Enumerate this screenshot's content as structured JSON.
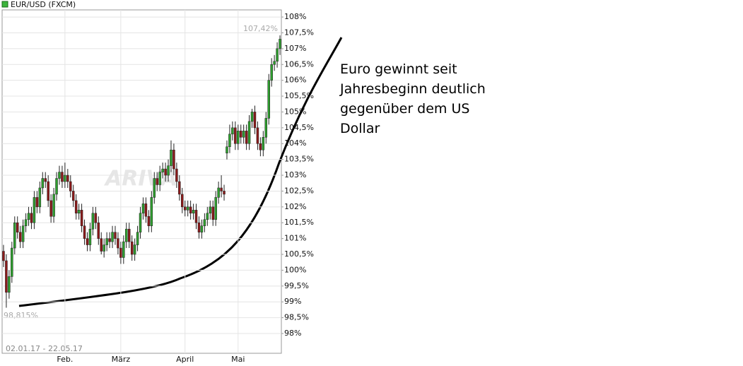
{
  "chart_data": {
    "type": "candlestick",
    "title": "EUR/USD (FXCM)",
    "annotations": {
      "max_label": "107,42%",
      "min_label": "98,815%",
      "range": "02.01.17 - 22.05.17",
      "watermark": "ARIVA",
      "comment": "Euro gewinnt seit Jahresbeginn deutlich gegenüber dem US Dollar"
    },
    "categories": [
      null,
      null,
      null,
      null,
      null,
      null,
      null,
      null,
      null,
      null,
      null,
      null,
      null,
      null,
      null,
      null,
      null,
      null,
      null,
      null,
      null,
      null,
      "Feb.",
      null,
      null,
      null,
      null,
      null,
      null,
      null,
      null,
      null,
      null,
      null,
      null,
      null,
      null,
      null,
      null,
      null,
      null,
      null,
      "März",
      null,
      null,
      null,
      null,
      null,
      null,
      null,
      null,
      null,
      null,
      null,
      null,
      null,
      null,
      null,
      null,
      null,
      null,
      null,
      null,
      null,
      null,
      "April",
      null,
      null,
      null,
      null,
      null,
      null,
      null,
      null,
      null,
      null,
      null,
      null,
      null,
      null,
      null,
      null,
      null,
      null,
      "Mai",
      null,
      null,
      null,
      null,
      null,
      null,
      null,
      null,
      null,
      null,
      null,
      null,
      null,
      null,
      null
    ],
    "series": [
      {
        "name": "EUR/USD (FXCM)",
        "up_color": "#2e9e2e",
        "down_color": "#8b1a1a",
        "open": [
          100.6,
          100.3,
          99.3,
          99.8,
          100.7,
          101.5,
          101.2,
          100.9,
          101.4,
          101.6,
          101.8,
          101.5,
          102.3,
          102.0,
          102.6,
          102.9,
          102.8,
          102.2,
          101.7,
          102.4,
          102.9,
          103.1,
          102.8,
          103.0,
          102.8,
          102.5,
          102.2,
          101.8,
          101.9,
          101.4,
          101.0,
          100.8,
          101.3,
          101.8,
          101.5,
          101.0,
          100.6,
          100.8,
          101.0,
          100.9,
          101.2,
          101.0,
          100.7,
          100.4,
          100.9,
          101.3,
          100.9,
          100.5,
          100.8,
          101.2,
          101.8,
          102.1,
          101.7,
          101.4,
          102.3,
          102.9,
          102.7,
          103.1,
          103.2,
          103.0,
          103.3,
          103.8,
          103.2,
          102.8,
          102.4,
          102.0,
          101.9,
          102.0,
          101.8,
          101.9,
          101.5,
          101.2,
          101.4,
          101.6,
          101.8,
          102.0,
          101.6,
          102.3,
          102.6,
          102.5,
          103.7,
          103.9,
          104.3,
          104.5,
          104.0,
          104.4,
          104.2,
          104.4,
          104.0,
          104.7,
          105.0,
          104.5,
          104.0,
          103.8,
          104.2,
          104.8,
          106.0,
          106.5,
          106.6,
          107.0
        ],
        "high": [
          100.8,
          100.5,
          100.0,
          100.9,
          101.7,
          101.7,
          101.4,
          101.6,
          101.8,
          102.0,
          102.0,
          102.5,
          102.5,
          102.8,
          103.1,
          103.1,
          103.0,
          102.4,
          102.6,
          103.1,
          103.3,
          103.3,
          103.4,
          103.2,
          103.0,
          102.7,
          102.4,
          102.1,
          102.1,
          101.6,
          101.2,
          101.5,
          102.0,
          102.0,
          101.7,
          101.2,
          101.0,
          101.2,
          101.2,
          101.4,
          101.4,
          101.2,
          100.9,
          101.1,
          101.5,
          101.5,
          101.1,
          101.0,
          101.4,
          102.0,
          102.3,
          102.3,
          101.9,
          102.5,
          103.1,
          103.1,
          103.3,
          103.4,
          103.4,
          103.5,
          104.1,
          104.0,
          103.4,
          103.0,
          102.6,
          102.2,
          102.2,
          102.2,
          102.1,
          102.1,
          101.7,
          101.6,
          101.8,
          102.0,
          102.2,
          102.2,
          102.5,
          102.8,
          103.0,
          102.7,
          104.1,
          104.6,
          104.7,
          104.7,
          104.6,
          104.6,
          104.6,
          104.6,
          104.9,
          105.1,
          105.2,
          104.7,
          104.2,
          104.4,
          105.0,
          106.2,
          106.7,
          106.8,
          107.2,
          107.42
        ],
        "low": [
          100.1,
          98.815,
          99.1,
          99.6,
          100.5,
          101.0,
          100.7,
          100.7,
          101.2,
          101.4,
          101.3,
          101.3,
          101.8,
          101.8,
          102.4,
          102.6,
          102.0,
          101.5,
          101.5,
          102.2,
          102.7,
          102.6,
          102.6,
          102.6,
          102.3,
          102.0,
          101.6,
          101.6,
          101.2,
          100.8,
          100.6,
          100.6,
          101.1,
          101.3,
          100.8,
          100.5,
          100.4,
          100.6,
          100.7,
          100.7,
          100.8,
          100.5,
          100.2,
          100.2,
          100.7,
          100.7,
          100.3,
          100.3,
          100.6,
          101.0,
          101.6,
          101.5,
          101.2,
          101.2,
          102.1,
          102.5,
          102.5,
          102.9,
          102.8,
          102.8,
          103.1,
          103.0,
          102.6,
          102.2,
          101.8,
          101.7,
          101.7,
          101.6,
          101.6,
          101.3,
          101.0,
          101.0,
          101.2,
          101.4,
          101.6,
          101.4,
          101.4,
          102.1,
          102.3,
          102.2,
          103.5,
          103.7,
          104.1,
          103.8,
          103.8,
          104.0,
          104.0,
          103.8,
          103.8,
          104.5,
          104.3,
          103.8,
          103.6,
          103.6,
          104.0,
          104.6,
          105.8,
          106.3,
          106.4,
          106.8
        ],
        "close": [
          100.3,
          99.3,
          99.8,
          100.7,
          101.5,
          101.2,
          100.9,
          101.4,
          101.6,
          101.8,
          101.5,
          102.3,
          102.0,
          102.6,
          102.9,
          102.8,
          102.2,
          101.7,
          102.4,
          102.9,
          103.1,
          102.8,
          103.0,
          102.8,
          102.5,
          102.2,
          101.8,
          101.9,
          101.4,
          101.0,
          100.8,
          101.3,
          101.8,
          101.5,
          101.0,
          100.6,
          100.8,
          101.0,
          100.9,
          101.2,
          101.0,
          100.7,
          100.4,
          100.9,
          101.3,
          100.9,
          100.5,
          100.8,
          101.2,
          101.8,
          102.1,
          101.7,
          101.4,
          102.3,
          102.9,
          102.7,
          103.1,
          103.2,
          103.0,
          103.3,
          103.8,
          103.2,
          102.8,
          102.4,
          102.0,
          101.9,
          102.0,
          101.8,
          101.9,
          101.5,
          101.2,
          101.4,
          101.6,
          101.8,
          102.0,
          101.6,
          102.3,
          102.6,
          102.5,
          102.4,
          103.9,
          104.3,
          104.5,
          104.0,
          104.4,
          104.2,
          104.4,
          104.0,
          104.7,
          105.0,
          104.5,
          104.0,
          103.8,
          104.2,
          104.8,
          106.0,
          106.5,
          106.6,
          107.0,
          107.3
        ]
      }
    ],
    "ylim": [
      97.375,
      108.225
    ],
    "yticks": [
      {
        "value": 98,
        "label": "98%"
      },
      {
        "value": 98.5,
        "label": "98,5%"
      },
      {
        "value": 99,
        "label": "99%"
      },
      {
        "value": 99.5,
        "label": "99,5%"
      },
      {
        "value": 100,
        "label": "100%"
      },
      {
        "value": 100.5,
        "label": "100,5%"
      },
      {
        "value": 101,
        "label": "101%"
      },
      {
        "value": 101.5,
        "label": "101,5%"
      },
      {
        "value": 102,
        "label": "102%"
      },
      {
        "value": 102.5,
        "label": "102,5%"
      },
      {
        "value": 103,
        "label": "103%"
      },
      {
        "value": 103.5,
        "label": "103,5%"
      },
      {
        "value": 104,
        "label": "104%"
      },
      {
        "value": 104.5,
        "label": "104,5%"
      },
      {
        "value": 105,
        "label": "105%"
      },
      {
        "value": 105.5,
        "label": "105,5%"
      },
      {
        "value": 106,
        "label": "106%"
      },
      {
        "value": 106.5,
        "label": "106,5%"
      },
      {
        "value": 107,
        "label": "107%"
      },
      {
        "value": 107.5,
        "label": "107,5%"
      },
      {
        "value": 108,
        "label": "108%"
      }
    ],
    "grid": true
  }
}
